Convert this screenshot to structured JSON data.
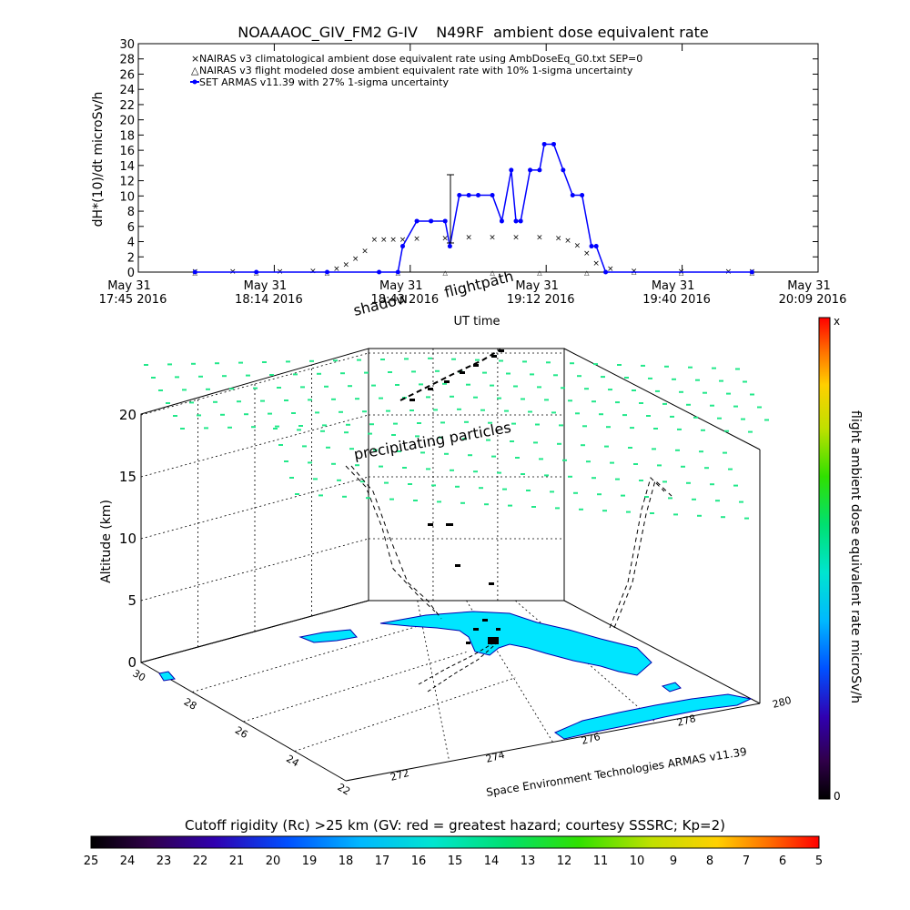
{
  "title": "NOAAAOC_GIV_FM2 G-IV    N49RF  ambient dose equivalent rate",
  "top_chart": {
    "ylabel": "dH*(10)/dt microSv/h",
    "xlabel": "UT time",
    "legend": [
      "NAIRAS v3 climatological ambient dose equivalent rate using AmbDoseEq_G0.txt SEP=0",
      "NAIRAS v3 flight modeled dose ambient equivalent rate with 10% 1-sigma uncertainty",
      "SET ARMAS v11.39 with 27% 1-sigma uncertainty"
    ],
    "y_ticks": [
      "0",
      "2",
      "4",
      "6",
      "8",
      "10",
      "12",
      "14",
      "16",
      "18",
      "20",
      "22",
      "24",
      "26",
      "28",
      "30"
    ],
    "x_ticks": [
      {
        "date": "May 31",
        "time": "17:45 2016"
      },
      {
        "date": "May 31",
        "time": "18:14 2016"
      },
      {
        "date": "May 31",
        "time": "18:43 2016"
      },
      {
        "date": "May 31",
        "time": "19:12 2016"
      },
      {
        "date": "May 31",
        "time": "19:40 2016"
      },
      {
        "date": "May 31",
        "time": "20:09 2016"
      }
    ]
  },
  "chart_data": {
    "type": "line",
    "title": "NOAAAOC_GIV_FM2 G-IV    N49RF  ambient dose equivalent rate",
    "xlabel": "UT time",
    "ylabel": "dH*(10)/dt microSv/h",
    "ylim": [
      0,
      30
    ],
    "xlim": [
      "17:45",
      "20:09"
    ],
    "series": [
      {
        "name": "NAIRAS v3 climatological ambient dose equivalent rate using AmbDoseEq_G0.txt SEP=0",
        "color": "#cc0000",
        "marker": "x",
        "x": [
          "17:57",
          "18:05",
          "18:15",
          "18:22",
          "18:27",
          "18:29",
          "18:31",
          "18:33",
          "18:35",
          "18:37",
          "18:39",
          "18:41",
          "18:44",
          "18:50",
          "18:55",
          "19:00",
          "19:05",
          "19:10",
          "19:14",
          "19:16",
          "19:18",
          "19:20",
          "19:22",
          "19:25",
          "19:30",
          "19:40",
          "19:50",
          "19:55"
        ],
        "y": [
          0.1,
          0.1,
          0.1,
          0.2,
          0.5,
          1.0,
          1.8,
          2.8,
          4.3,
          4.3,
          4.3,
          4.3,
          4.4,
          4.5,
          4.6,
          4.6,
          4.6,
          4.6,
          4.5,
          4.2,
          3.5,
          2.5,
          1.2,
          0.5,
          0.2,
          0.1,
          0.1,
          0.1
        ]
      },
      {
        "name": "NAIRAS v3 flight modeled dose ambient equivalent rate with 10% 1-sigma uncertainty",
        "color": "#000000",
        "marker": "triangle",
        "x": [
          "17:57",
          "18:10",
          "18:25",
          "18:40",
          "18:50",
          "19:00",
          "19:10",
          "19:20",
          "19:30",
          "19:40",
          "19:55"
        ],
        "y": [
          0,
          0,
          0,
          0,
          0,
          0,
          0,
          0,
          0.1,
          0,
          0
        ]
      },
      {
        "name": "SET ARMAS v11.39 with 27% 1-sigma uncertainty",
        "color": "#0000ff",
        "marker": "dot",
        "x": [
          "17:57",
          "18:10",
          "18:25",
          "18:36",
          "18:40",
          "18:41",
          "18:44",
          "18:47",
          "18:50",
          "18:51",
          "18:53",
          "18:55",
          "18:57",
          "19:00",
          "19:02",
          "19:04",
          "19:05",
          "19:06",
          "19:08",
          "19:10",
          "19:11",
          "19:13",
          "19:15",
          "19:17",
          "19:19",
          "19:21",
          "19:22",
          "19:24",
          "19:55"
        ],
        "y": [
          0,
          0,
          0,
          0,
          0,
          3.4,
          6.7,
          6.7,
          6.7,
          3.4,
          10.1,
          10.1,
          10.1,
          10.1,
          6.7,
          13.4,
          6.7,
          6.7,
          13.4,
          13.4,
          16.8,
          16.8,
          13.4,
          10.1,
          10.1,
          3.4,
          3.4,
          0,
          0
        ]
      }
    ]
  },
  "bottom_chart": {
    "ylabel": "Altitude (km)",
    "z_ticks": [
      "0",
      "5",
      "10",
      "15",
      "20"
    ],
    "lat_ticks": [
      "30",
      "28",
      "26",
      "24",
      "22"
    ],
    "lon_ticks": [
      "272",
      "274",
      "276",
      "278",
      "280"
    ],
    "annotations": {
      "shadow": "shadow",
      "flightpath": "flightpath",
      "precipitating": "precipitating particles",
      "credit": "Space Environment Technologies ARMAS v11.39"
    },
    "right_bar": {
      "label": "flight ambient dose equivalent rate microSv/h",
      "top": "x",
      "bottom": "0"
    }
  },
  "bottom_bar": {
    "label": "Cutoff rigidity (Rc) >25 km (GV: red = greatest hazard; courtesy SSSRC; Kp=2)",
    "ticks": [
      "25",
      "24",
      "23",
      "22",
      "21",
      "20",
      "19",
      "18",
      "17",
      "16",
      "15",
      "14",
      "13",
      "12",
      "11",
      "10",
      "9",
      "8",
      "7",
      "6",
      "5"
    ]
  },
  "colors": {
    "nairas_clim": "#cc0000",
    "armas": "#0000ff",
    "land": "#00e5ff",
    "particles": "#22e88a"
  }
}
